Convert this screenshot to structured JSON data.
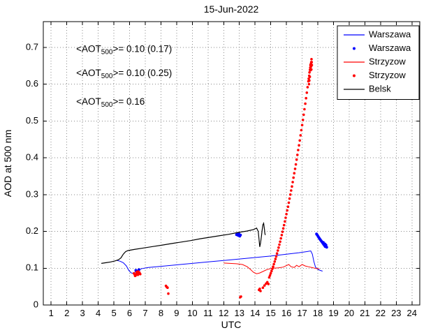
{
  "figure": {
    "title": "15-Jun-2022"
  },
  "chart_data": {
    "type": "line+scatter",
    "title": "15-Jun-2022",
    "xlabel": "UTC",
    "ylabel": "AOD at 500 nm",
    "xlim": [
      0.5,
      24.5
    ],
    "ylim": [
      0,
      0.77
    ],
    "xticks": [
      1,
      2,
      3,
      4,
      5,
      6,
      7,
      8,
      9,
      10,
      11,
      12,
      13,
      14,
      15,
      16,
      17,
      18,
      19,
      20,
      21,
      22,
      23,
      24
    ],
    "yticks": [
      0,
      0.1,
      0.2,
      0.3,
      0.4,
      0.5,
      0.6,
      0.7
    ],
    "grid": true,
    "grid_color": "#8a8a8a",
    "axes_color": "#000000",
    "legend": {
      "position": "top-right",
      "entries": [
        {
          "label": "Warszawa",
          "type": "line",
          "color": "#0000ff"
        },
        {
          "label": "Warszawa",
          "type": "marker",
          "color": "#0000ff"
        },
        {
          "label": "Strzyzow",
          "type": "line",
          "color": "#ff0000"
        },
        {
          "label": "Strzyzow",
          "type": "marker",
          "color": "#ff0000"
        },
        {
          "label": "Belsk",
          "type": "line",
          "color": "#000000"
        }
      ]
    },
    "annotations": [
      {
        "prefix": "<AOT",
        "sub": "500",
        "suffix": ">= 0.10 (0.17)",
        "color": "#0000ff",
        "x": 2.6,
        "y": 0.695
      },
      {
        "prefix": "<AOT",
        "sub": "500",
        "suffix": ">= 0.10 (0.25)",
        "color": "#ff0000",
        "x": 2.6,
        "y": 0.63
      },
      {
        "prefix": "<AOT",
        "sub": "500",
        "suffix": ">= 0.16",
        "color": "#000000",
        "x": 2.6,
        "y": 0.552
      }
    ],
    "series": [
      {
        "name": "Warszawa",
        "type": "line",
        "color": "#0000ff",
        "width": 1,
        "points": [
          [
            5.2,
            0.121
          ],
          [
            5.4,
            0.119
          ],
          [
            5.6,
            0.115
          ],
          [
            5.8,
            0.106
          ],
          [
            5.95,
            0.094
          ],
          [
            6.1,
            0.087
          ],
          [
            6.25,
            0.086
          ],
          [
            6.4,
            0.091
          ],
          [
            6.6,
            0.096
          ],
          [
            6.8,
            0.099
          ],
          [
            7.2,
            0.102
          ],
          [
            8.0,
            0.105
          ],
          [
            9.0,
            0.109
          ],
          [
            10.0,
            0.113
          ],
          [
            11.0,
            0.117
          ],
          [
            12.0,
            0.121
          ],
          [
            13.0,
            0.125
          ],
          [
            14.0,
            0.129
          ],
          [
            15.0,
            0.133
          ],
          [
            16.0,
            0.138
          ],
          [
            16.8,
            0.142
          ],
          [
            17.3,
            0.145
          ],
          [
            17.55,
            0.147
          ],
          [
            17.65,
            0.138
          ],
          [
            17.75,
            0.118
          ],
          [
            17.85,
            0.103
          ],
          [
            18.0,
            0.097
          ],
          [
            18.15,
            0.094
          ],
          [
            18.3,
            0.092
          ]
        ]
      },
      {
        "name": "Warszawa",
        "type": "scatter",
        "color": "#0000ff",
        "r": 2,
        "points": [
          [
            6.4,
            0.094
          ],
          [
            6.5,
            0.092
          ],
          [
            6.6,
            0.096
          ],
          [
            12.82,
            0.191
          ],
          [
            12.87,
            0.194
          ],
          [
            12.92,
            0.189
          ],
          [
            12.97,
            0.193
          ],
          [
            13.02,
            0.187
          ],
          [
            13.07,
            0.19
          ],
          [
            17.92,
            0.193
          ],
          [
            17.97,
            0.19
          ],
          [
            18.02,
            0.186
          ],
          [
            18.07,
            0.183
          ],
          [
            18.12,
            0.18
          ],
          [
            18.17,
            0.177
          ],
          [
            18.22,
            0.174
          ],
          [
            18.27,
            0.171
          ],
          [
            18.32,
            0.168
          ],
          [
            18.37,
            0.165
          ],
          [
            18.42,
            0.162
          ],
          [
            18.47,
            0.159
          ],
          [
            18.52,
            0.163
          ],
          [
            18.57,
            0.157
          ],
          [
            18.35,
            0.17
          ],
          [
            18.45,
            0.166
          ]
        ]
      },
      {
        "name": "Strzyzow",
        "type": "line",
        "color": "#ff0000",
        "width": 1,
        "points": [
          [
            12.0,
            0.114
          ],
          [
            12.4,
            0.113
          ],
          [
            12.8,
            0.112
          ],
          [
            13.2,
            0.11
          ],
          [
            13.5,
            0.104
          ],
          [
            13.7,
            0.097
          ],
          [
            13.9,
            0.089
          ],
          [
            14.1,
            0.085
          ],
          [
            14.3,
            0.087
          ],
          [
            14.5,
            0.091
          ],
          [
            14.7,
            0.095
          ],
          [
            14.9,
            0.098
          ],
          [
            15.2,
            0.1
          ],
          [
            15.5,
            0.101
          ],
          [
            15.8,
            0.103
          ],
          [
            16.0,
            0.107
          ],
          [
            16.15,
            0.11
          ],
          [
            16.3,
            0.104
          ],
          [
            16.5,
            0.102
          ],
          [
            16.65,
            0.108
          ],
          [
            16.8,
            0.104
          ],
          [
            17.0,
            0.11
          ],
          [
            17.2,
            0.106
          ],
          [
            17.4,
            0.104
          ],
          [
            17.7,
            0.101
          ],
          [
            17.9,
            0.099
          ],
          [
            18.1,
            0.098
          ]
        ]
      },
      {
        "name": "Strzyzow",
        "type": "scatter",
        "color": "#ff0000",
        "r": 1.8,
        "points": [
          [
            6.28,
            0.086
          ],
          [
            6.33,
            0.083
          ],
          [
            6.38,
            0.08
          ],
          [
            6.43,
            0.084
          ],
          [
            6.48,
            0.087
          ],
          [
            6.53,
            0.082
          ],
          [
            6.58,
            0.085
          ],
          [
            6.63,
            0.088
          ],
          [
            6.68,
            0.084
          ],
          [
            6.35,
            0.079
          ],
          [
            6.45,
            0.09
          ],
          [
            6.55,
            0.091
          ],
          [
            8.32,
            0.052
          ],
          [
            8.37,
            0.049
          ],
          [
            8.42,
            0.047
          ],
          [
            8.47,
            0.031
          ],
          [
            13.05,
            0.021
          ],
          [
            13.1,
            0.023
          ],
          [
            14.25,
            0.041
          ],
          [
            14.3,
            0.044
          ],
          [
            14.35,
            0.038
          ],
          [
            14.5,
            0.047
          ],
          [
            14.6,
            0.053
          ],
          [
            14.7,
            0.058
          ],
          [
            14.78,
            0.062
          ],
          [
            14.85,
            0.057
          ],
          [
            14.9,
            0.075
          ],
          [
            14.95,
            0.08
          ],
          [
            15.0,
            0.086
          ],
          [
            15.05,
            0.092
          ],
          [
            15.1,
            0.098
          ],
          [
            15.15,
            0.104
          ],
          [
            15.2,
            0.111
          ],
          [
            15.25,
            0.118
          ],
          [
            15.3,
            0.125
          ],
          [
            15.35,
            0.132
          ],
          [
            15.4,
            0.14
          ],
          [
            15.45,
            0.148
          ],
          [
            15.5,
            0.156
          ],
          [
            15.55,
            0.164
          ],
          [
            15.6,
            0.172
          ],
          [
            15.65,
            0.181
          ],
          [
            15.7,
            0.19
          ],
          [
            15.75,
            0.199
          ],
          [
            15.8,
            0.208
          ],
          [
            15.85,
            0.217
          ],
          [
            15.9,
            0.227
          ],
          [
            15.95,
            0.237
          ],
          [
            16.0,
            0.247
          ],
          [
            16.05,
            0.257
          ],
          [
            16.1,
            0.267
          ],
          [
            16.15,
            0.278
          ],
          [
            16.2,
            0.289
          ],
          [
            16.25,
            0.3
          ],
          [
            16.3,
            0.311
          ],
          [
            16.35,
            0.322
          ],
          [
            16.4,
            0.334
          ],
          [
            16.45,
            0.346
          ],
          [
            16.5,
            0.358
          ],
          [
            16.55,
            0.37
          ],
          [
            16.6,
            0.382
          ],
          [
            16.65,
            0.395
          ],
          [
            16.7,
            0.408
          ],
          [
            16.75,
            0.421
          ],
          [
            16.8,
            0.434
          ],
          [
            16.85,
            0.447
          ],
          [
            16.9,
            0.461
          ],
          [
            16.95,
            0.475
          ],
          [
            17.0,
            0.489
          ],
          [
            17.05,
            0.503
          ],
          [
            17.1,
            0.517
          ],
          [
            17.15,
            0.532
          ],
          [
            17.2,
            0.547
          ],
          [
            17.25,
            0.562
          ],
          [
            17.3,
            0.577
          ],
          [
            17.35,
            0.592
          ],
          [
            17.4,
            0.608
          ],
          [
            17.45,
            0.623
          ],
          [
            17.5,
            0.639
          ],
          [
            17.55,
            0.65
          ],
          [
            17.58,
            0.66
          ],
          [
            17.42,
            0.615
          ],
          [
            17.47,
            0.632
          ],
          [
            17.52,
            0.645
          ],
          [
            17.56,
            0.655
          ],
          [
            17.6,
            0.668
          ],
          [
            17.44,
            0.6
          ],
          [
            17.49,
            0.62
          ],
          [
            17.54,
            0.638
          ],
          [
            17.57,
            0.648
          ],
          [
            17.61,
            0.66
          ],
          [
            17.46,
            0.61
          ],
          [
            17.53,
            0.652
          ],
          [
            17.59,
            0.64
          ],
          [
            17.62,
            0.652
          ]
        ]
      },
      {
        "name": "Belsk",
        "type": "line",
        "color": "#000000",
        "width": 1.2,
        "points": [
          [
            4.2,
            0.113
          ],
          [
            4.5,
            0.115
          ],
          [
            4.8,
            0.117
          ],
          [
            5.1,
            0.12
          ],
          [
            5.3,
            0.123
          ],
          [
            5.45,
            0.128
          ],
          [
            5.6,
            0.138
          ],
          [
            5.75,
            0.145
          ],
          [
            5.9,
            0.148
          ],
          [
            6.3,
            0.151
          ],
          [
            6.9,
            0.155
          ],
          [
            7.5,
            0.159
          ],
          [
            8.1,
            0.163
          ],
          [
            8.7,
            0.167
          ],
          [
            9.3,
            0.171
          ],
          [
            9.9,
            0.175
          ],
          [
            10.5,
            0.18
          ],
          [
            11.1,
            0.184
          ],
          [
            11.7,
            0.188
          ],
          [
            12.3,
            0.192
          ],
          [
            12.9,
            0.197
          ],
          [
            13.5,
            0.201
          ],
          [
            13.9,
            0.205
          ],
          [
            14.1,
            0.209
          ],
          [
            14.2,
            0.2
          ],
          [
            14.25,
            0.18
          ],
          [
            14.3,
            0.158
          ],
          [
            14.35,
            0.168
          ],
          [
            14.4,
            0.185
          ],
          [
            14.45,
            0.203
          ],
          [
            14.5,
            0.218
          ],
          [
            14.55,
            0.222
          ],
          [
            14.6,
            0.205
          ],
          [
            14.62,
            0.196
          ],
          [
            14.65,
            0.19
          ]
        ]
      }
    ]
  }
}
